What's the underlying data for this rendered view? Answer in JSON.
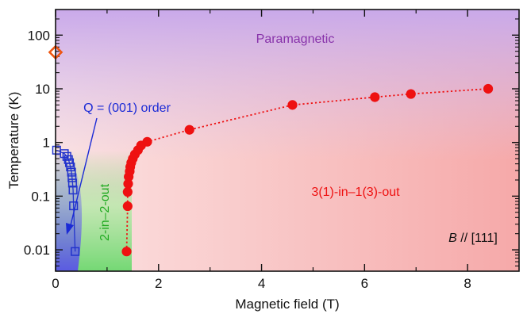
{
  "chart_data": {
    "type": "scatter",
    "xlabel": "Magnetic field (T)",
    "ylabel": "Temperature (K)",
    "xlim": [
      0,
      9
    ],
    "ylim": [
      0.004,
      300
    ],
    "yscale": "log",
    "x_ticks": [
      {
        "value": 0,
        "label": "0"
      },
      {
        "value": 2,
        "label": "2"
      },
      {
        "value": 4,
        "label": "4"
      },
      {
        "value": 6,
        "label": "6"
      },
      {
        "value": 8,
        "label": "8"
      }
    ],
    "y_ticks": [
      {
        "value": 0.01,
        "label": "0.01"
      },
      {
        "value": 0.1,
        "label": "0.1"
      },
      {
        "value": 1,
        "label": "1"
      },
      {
        "value": 10,
        "label": "10"
      },
      {
        "value": 100,
        "label": "100"
      }
    ],
    "regions": {
      "paramagnetic": "Paramagnetic",
      "two_in_two_out": "2-in–2-out",
      "three_one": "3(1)-in–1(3)-out",
      "q_order": "Q = (001) order",
      "field_dir_italic": "B",
      "field_dir_rest": " // [111]"
    },
    "colors": {
      "paramagnetic": "#c8a8e8",
      "green": "#7cd67c",
      "blue": "#6e6ee6",
      "red": "#f4a0a0",
      "red_points": "#ee1111",
      "blue_points": "#2233cc",
      "orange": "#ee5511",
      "purple_text": "#8833aa",
      "green_text": "#22aa22"
    },
    "series": [
      {
        "marker": "filled-circle",
        "line": "dotted",
        "color": "#ee1111",
        "points": [
          {
            "x": 1.38,
            "y": 0.0093
          },
          {
            "x": 1.4,
            "y": 0.065
          },
          {
            "x": 1.4,
            "y": 0.12
          },
          {
            "x": 1.41,
            "y": 0.17
          },
          {
            "x": 1.42,
            "y": 0.23
          },
          {
            "x": 1.44,
            "y": 0.29
          },
          {
            "x": 1.45,
            "y": 0.35
          },
          {
            "x": 1.47,
            "y": 0.42
          },
          {
            "x": 1.5,
            "y": 0.5
          },
          {
            "x": 1.54,
            "y": 0.6
          },
          {
            "x": 1.6,
            "y": 0.72
          },
          {
            "x": 1.66,
            "y": 0.88
          },
          {
            "x": 1.78,
            "y": 1.03
          },
          {
            "x": 2.6,
            "y": 1.72
          },
          {
            "x": 4.6,
            "y": 5.0
          },
          {
            "x": 6.2,
            "y": 7.0
          },
          {
            "x": 6.9,
            "y": 8.0
          },
          {
            "x": 8.4,
            "y": 10.0
          }
        ]
      },
      {
        "marker": "open-square",
        "line": "solid",
        "color": "#2233cc",
        "points": [
          {
            "x": 0.02,
            "y": 0.72
          },
          {
            "x": 0.17,
            "y": 0.62
          },
          {
            "x": 0.22,
            "y": 0.55
          },
          {
            "x": 0.25,
            "y": 0.48
          },
          {
            "x": 0.27,
            "y": 0.42
          },
          {
            "x": 0.29,
            "y": 0.35
          },
          {
            "x": 0.31,
            "y": 0.28
          },
          {
            "x": 0.32,
            "y": 0.22
          },
          {
            "x": 0.33,
            "y": 0.175
          },
          {
            "x": 0.34,
            "y": 0.13
          },
          {
            "x": 0.35,
            "y": 0.066
          },
          {
            "x": 0.38,
            "y": 0.0093
          }
        ]
      },
      {
        "marker": "open-diamond",
        "color": "#ee5511",
        "points": [
          {
            "x": 0.0,
            "y": 48
          }
        ]
      }
    ]
  }
}
